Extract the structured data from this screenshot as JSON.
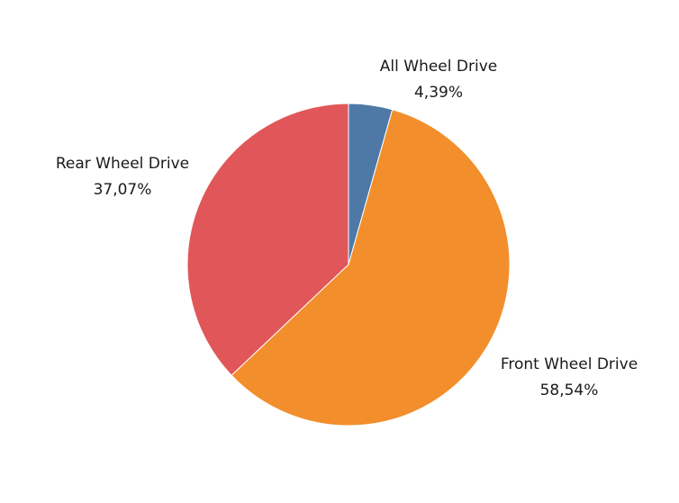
{
  "colors": {
    "all_wheel_drive": "#4e79a7",
    "front_wheel_drive": "#f28e2b",
    "rear_wheel_drive": "#e15759",
    "label_text": "#1a1a1a",
    "background": "#ffffff"
  },
  "chart_data": {
    "type": "pie",
    "title": "",
    "start_angle_deg": 0,
    "direction": "clockwise",
    "slices": [
      {
        "label": "All Wheel Drive",
        "value": 4.39,
        "value_label": "4,39%",
        "color": "#4e79a7"
      },
      {
        "label": "Front Wheel Drive",
        "value": 58.54,
        "value_label": "58,54%",
        "color": "#f28e2b"
      },
      {
        "label": "Rear Wheel Drive",
        "value": 37.07,
        "value_label": "37,07%",
        "color": "#e15759"
      }
    ]
  }
}
